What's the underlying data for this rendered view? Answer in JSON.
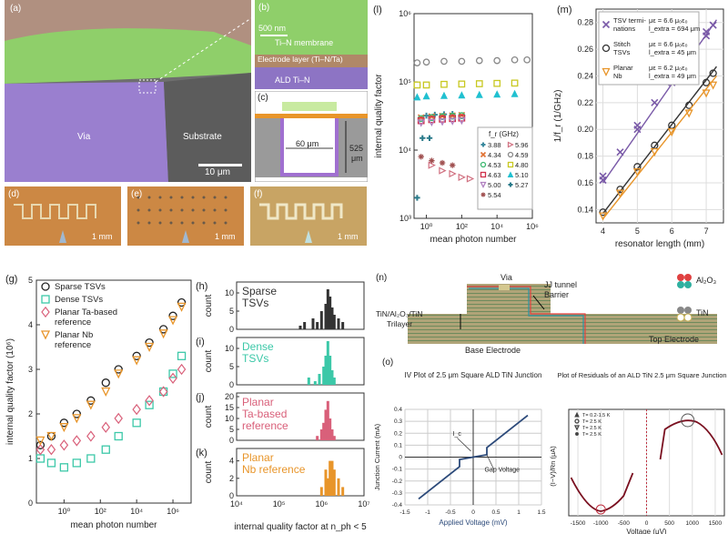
{
  "panels": {
    "a": {
      "label": "(a)",
      "via": "Via",
      "substrate": "Substrate",
      "scale": "10 μm"
    },
    "b": {
      "label": "(b)",
      "scale": "500 nm",
      "membrane": "Ti–N membrane",
      "electrode": "Electrode layer (Ti–N/Ta)",
      "ald": "ALD Ti–N"
    },
    "c": {
      "label": "(c)",
      "width": "60 μm",
      "depth": "525",
      "depth_unit": "μm"
    },
    "d": {
      "label": "(d)",
      "scale": "1 mm"
    },
    "e": {
      "label": "(e)",
      "scale": "1 mm"
    },
    "f": {
      "label": "(f)",
      "scale": "1 mm"
    },
    "n": {
      "label": "(n)",
      "via": "Via",
      "jj1": "JJ tunnel",
      "jj2": "Barrier",
      "tri1": "TiN/Al₂O₃/TiN",
      "tri2": "Trilayer",
      "top": "Top Electrode",
      "base": "Base Electrode",
      "leg_al": "Al₂O₃",
      "leg_tin": "TiN"
    },
    "o": {
      "label": "(o)"
    }
  },
  "colors": {
    "green": "#8cc63f",
    "purple": "#9b6bc7",
    "orange": "#e89a3c",
    "teal": "#3cc8a8",
    "pink": "#d9607a",
    "navy": "#2c4a7a"
  },
  "chart_data": [
    {
      "id": "l",
      "label": "(l)",
      "type": "scatter",
      "xlabel": "mean photon number",
      "ylabel": "internal quality factor",
      "xlim": [
        0.2,
        1000000
      ],
      "ylim": [
        1000,
        1000000
      ],
      "xscale": "log",
      "yscale": "log",
      "xticks": [
        "10⁰",
        "10²",
        "10⁴",
        "10⁶"
      ],
      "yticks": [
        "10³",
        "10⁴",
        "10⁵",
        "10⁶"
      ],
      "legend_title": "f_r (GHz)",
      "series": [
        {
          "name": "3.88",
          "color": "#3b8a9e",
          "marker": "plus",
          "x": [
            1,
            3,
            10,
            30
          ],
          "y": [
            32000,
            33000,
            33500,
            34000
          ]
        },
        {
          "name": "4.34",
          "color": "#e07030",
          "marker": "x",
          "x": [
            0.5,
            2,
            8,
            30,
            100
          ],
          "y": [
            30000,
            31000,
            31500,
            32000,
            32500
          ]
        },
        {
          "name": "4.53",
          "color": "#3cb870",
          "marker": "circle",
          "x": [
            0.5,
            2,
            8,
            30,
            100
          ],
          "y": [
            29000,
            30000,
            31000,
            31500,
            32000
          ]
        },
        {
          "name": "4.63",
          "color": "#d0304a",
          "marker": "square",
          "x": [
            0.5,
            2,
            8,
            30,
            100
          ],
          "y": [
            27000,
            28000,
            28500,
            29000,
            29500
          ]
        },
        {
          "name": "5.00",
          "color": "#b080c0",
          "marker": "triangle-down",
          "x": [
            0.5,
            2,
            8,
            30,
            100
          ],
          "y": [
            25000,
            25500,
            26000,
            26500,
            27000
          ]
        },
        {
          "name": "5.54",
          "color": "#a05050",
          "marker": "star",
          "x": [
            0.5,
            2,
            8,
            30
          ],
          "y": [
            8000,
            7000,
            6500,
            6000
          ]
        },
        {
          "name": "5.96",
          "color": "#d07080",
          "marker": "triangle-right",
          "x": [
            2,
            8,
            30,
            100,
            300
          ],
          "y": [
            6000,
            5000,
            4500,
            4000,
            3800
          ]
        },
        {
          "name": "4.59",
          "color": "#888888",
          "marker": "circle",
          "x": [
            0.3,
            1,
            10,
            100,
            1000,
            10000,
            100000,
            500000
          ],
          "y": [
            190000,
            195000,
            200000,
            200000,
            205000,
            205000,
            210000,
            210000
          ]
        },
        {
          "name": "4.80",
          "color": "#c8c820",
          "marker": "square",
          "x": [
            0.3,
            1,
            10,
            100,
            1000,
            10000,
            100000
          ],
          "y": [
            90000,
            90000,
            92000,
            93000,
            94000,
            95000,
            96000
          ]
        },
        {
          "name": "5.10",
          "color": "#20c0d0",
          "marker": "triangle",
          "x": [
            0.3,
            1,
            10,
            100,
            1000,
            10000,
            100000
          ],
          "y": [
            60000,
            62000,
            63000,
            64000,
            65000,
            66000,
            67000
          ]
        },
        {
          "name": "5.27",
          "color": "#2a7a8a",
          "marker": "plus",
          "x": [
            0.3,
            0.6,
            1.5
          ],
          "y": [
            2000,
            15000,
            15000
          ]
        }
      ]
    },
    {
      "id": "m",
      "label": "(m)",
      "type": "scatter",
      "xlabel": "resonator length (mm)",
      "ylabel": "1/f_r (1/GHz)",
      "xlim": [
        3.8,
        7.5
      ],
      "ylim": [
        0.13,
        0.29
      ],
      "xticks": [
        "4",
        "5",
        "6",
        "7"
      ],
      "yticks": [
        "0.14",
        "0.16",
        "0.18",
        "0.20",
        "0.22",
        "0.24",
        "0.26",
        "0.28"
      ],
      "series": [
        {
          "name": "TSV terminations",
          "name1": "TSV termi-",
          "name2": "nations",
          "fit1": "με = 6.6 μ₀ε₀",
          "fit2": "l_extra = 694 μm",
          "color": "#7a5aa8",
          "marker": "x",
          "x": [
            4,
            4,
            4.5,
            5,
            5,
            5.5,
            6,
            6,
            6.5,
            7,
            7,
            7.2
          ],
          "y": [
            0.162,
            0.165,
            0.183,
            0.2,
            0.203,
            0.22,
            0.235,
            0.24,
            0.255,
            0.27,
            0.273,
            0.278
          ],
          "fit": [
            [
              4,
              0.16
            ],
            [
              7.3,
              0.282
            ]
          ]
        },
        {
          "name": "Stitch TSVs",
          "name1": "Stitch",
          "name2": "TSVs",
          "fit1": "με = 6.6 μ₀ε₀",
          "fit2": "l_extra = 45 μm",
          "color": "#333333",
          "marker": "circle",
          "x": [
            4,
            4.5,
            5,
            5.5,
            6,
            6.5,
            7,
            7.2
          ],
          "y": [
            0.138,
            0.155,
            0.172,
            0.188,
            0.203,
            0.218,
            0.235,
            0.242
          ],
          "fit": [
            [
              4,
              0.137
            ],
            [
              7.3,
              0.247
            ]
          ]
        },
        {
          "name": "Planar Nb",
          "name1": "Planar",
          "name2": "Nb",
          "fit1": "με = 6.2 μ₀ε₀",
          "fit2": "l_extra = 49 μm",
          "color": "#e8952a",
          "marker": "triangle-down",
          "x": [
            4,
            4.5,
            5,
            5.5,
            6,
            6.5,
            7,
            7.2
          ],
          "y": [
            0.135,
            0.152,
            0.168,
            0.183,
            0.198,
            0.212,
            0.227,
            0.233
          ],
          "fit": [
            [
              4,
              0.133
            ],
            [
              7.3,
              0.24
            ]
          ]
        }
      ]
    },
    {
      "id": "g",
      "label": "(g)",
      "type": "scatter",
      "xlabel": "mean photon number",
      "ylabel": "internal quality factor (10⁶)",
      "xlim": [
        0.03,
        10000000
      ],
      "ylim": [
        0,
        5
      ],
      "xticks": [
        "10⁰",
        "10²",
        "10⁴",
        "10⁶"
      ],
      "yticks": [
        "0",
        "1",
        "2",
        "3",
        "4",
        "5"
      ],
      "series": [
        {
          "name": "Sparse TSVs",
          "color": "#222222",
          "marker": "circle",
          "x": [
            0.05,
            0.2,
            1,
            5,
            30,
            200,
            1000,
            10000,
            50000,
            300000,
            1000000,
            3000000
          ],
          "y": [
            1.3,
            1.5,
            1.8,
            2.0,
            2.3,
            2.7,
            3.0,
            3.3,
            3.6,
            3.9,
            4.2,
            4.5
          ]
        },
        {
          "name": "Dense TSVs",
          "color": "#3cc8a8",
          "marker": "square",
          "x": [
            0.05,
            0.2,
            1,
            5,
            30,
            200,
            1000,
            10000,
            50000,
            300000,
            1000000,
            3000000
          ],
          "y": [
            1.0,
            0.9,
            0.8,
            0.9,
            1.0,
            1.2,
            1.5,
            1.8,
            2.2,
            2.5,
            2.9,
            3.3
          ]
        },
        {
          "name": "Planar Ta-based reference",
          "name1": "Planar Ta-based",
          "name2": "reference",
          "color": "#d9607a",
          "marker": "diamond",
          "x": [
            0.05,
            0.2,
            1,
            5,
            30,
            200,
            1000,
            10000,
            50000,
            300000,
            1000000,
            3000000
          ],
          "y": [
            1.2,
            1.2,
            1.3,
            1.4,
            1.5,
            1.7,
            1.9,
            2.1,
            2.3,
            2.5,
            2.8,
            3.0
          ]
        },
        {
          "name": "Planar Nb reference",
          "name1": "Planar Nb",
          "name2": "reference",
          "color": "#e8952a",
          "marker": "triangle-down",
          "x": [
            0.05,
            0.2,
            1,
            5,
            30,
            200,
            1000,
            10000,
            50000,
            300000,
            1000000,
            3000000
          ],
          "y": [
            1.4,
            1.5,
            1.7,
            1.9,
            2.2,
            2.5,
            2.9,
            3.2,
            3.5,
            3.8,
            4.1,
            4.4
          ]
        }
      ]
    },
    {
      "id": "hk",
      "type": "bar",
      "xlabel": "internal quality factor at n_ph < 5",
      "xlim_log": [
        4,
        7
      ],
      "xticks": [
        "10⁴",
        "10⁵",
        "10⁶",
        "10⁷"
      ],
      "subplots": [
        {
          "id": "h",
          "label": "(h)",
          "text1": "Sparse",
          "text2": "TSVs",
          "color": "#333333",
          "ylabel": "count",
          "yticks": [
            "0",
            "5",
            "10"
          ],
          "ymax": 12,
          "bins": [
            [
              5.5,
              1
            ],
            [
              5.6,
              2
            ],
            [
              5.8,
              3
            ],
            [
              5.9,
              2
            ],
            [
              6.0,
              5
            ],
            [
              6.1,
              7
            ],
            [
              6.15,
              11
            ],
            [
              6.2,
              9
            ],
            [
              6.25,
              6
            ],
            [
              6.3,
              4
            ],
            [
              6.4,
              3
            ],
            [
              6.5,
              2
            ]
          ]
        },
        {
          "id": "i",
          "label": "(i)",
          "text1": "Dense",
          "text2": "TSVs",
          "color": "#3cc8a8",
          "ylabel": "count",
          "yticks": [
            "0",
            "5",
            "10"
          ],
          "ymax": 12,
          "bins": [
            [
              5.7,
              2
            ],
            [
              5.85,
              1
            ],
            [
              5.95,
              3
            ],
            [
              6.05,
              5
            ],
            [
              6.1,
              8
            ],
            [
              6.15,
              12
            ],
            [
              6.2,
              8
            ],
            [
              6.25,
              4
            ],
            [
              6.3,
              2
            ]
          ]
        },
        {
          "id": "j",
          "label": "(j)",
          "text1": "Planar",
          "text2": "Ta-based",
          "text3": "reference",
          "color": "#d9607a",
          "ylabel": "count",
          "yticks": [
            "0",
            "5",
            "10",
            "15",
            "20"
          ],
          "ymax": 20,
          "bins": [
            [
              5.9,
              2
            ],
            [
              6.0,
              5
            ],
            [
              6.05,
              8
            ],
            [
              6.1,
              14
            ],
            [
              6.15,
              18
            ],
            [
              6.2,
              10
            ],
            [
              6.25,
              5
            ],
            [
              6.3,
              2
            ]
          ]
        },
        {
          "id": "k",
          "label": "(k)",
          "text1": "Planar",
          "text2": "Nb reference",
          "color": "#e8952a",
          "ylabel": "count",
          "yticks": [
            "0",
            "2",
            "4"
          ],
          "ymax": 5,
          "bins": [
            [
              6.0,
              1
            ],
            [
              6.1,
              3
            ],
            [
              6.15,
              2
            ],
            [
              6.2,
              4
            ],
            [
              6.25,
              4
            ],
            [
              6.3,
              3
            ],
            [
              6.4,
              2
            ],
            [
              6.5,
              1
            ]
          ]
        }
      ]
    },
    {
      "id": "o_iv",
      "type": "line",
      "title": "IV Plot of 2.5 μm Square  ALD TiN Junction",
      "xlabel": "Applied Voltage (mV)",
      "ylabel": "Junction Current (mA)",
      "xlim": [
        -1.5,
        1.5
      ],
      "ylim": [
        -0.4,
        0.4
      ],
      "xticks": [
        "-1.5",
        "-1",
        "-0.5",
        "0",
        "0.5",
        "1",
        "1.5"
      ],
      "yticks": [
        "-0.4",
        "-0.3",
        "-0.2",
        "-0.1",
        "0",
        "0.1",
        "0.2",
        "0.3",
        "0.4"
      ],
      "annotations": [
        "I_c",
        "Gap Voltage"
      ],
      "x": [
        -1.2,
        -0.3,
        -0.3,
        0.3,
        0.3,
        1.2
      ],
      "y": [
        -0.35,
        -0.08,
        -0.02,
        0.02,
        0.08,
        0.35
      ]
    },
    {
      "id": "o_res",
      "type": "scatter",
      "title": "Plot of Residuals of an ALD TiN 2.5 μm Square Junction",
      "xlabel": "Voltage (μV)",
      "ylabel": "(I−V)/Rn (μA)",
      "xlim": [
        -1700,
        1700
      ],
      "xticks": [
        "-1500",
        "-1000",
        "-500",
        "0",
        "500",
        "1000",
        "1500"
      ],
      "legend": [
        "T= 0.2-1.5 K",
        "T= 2.5 K",
        "T= 2.5 K",
        "T= 2.5 K"
      ]
    }
  ]
}
